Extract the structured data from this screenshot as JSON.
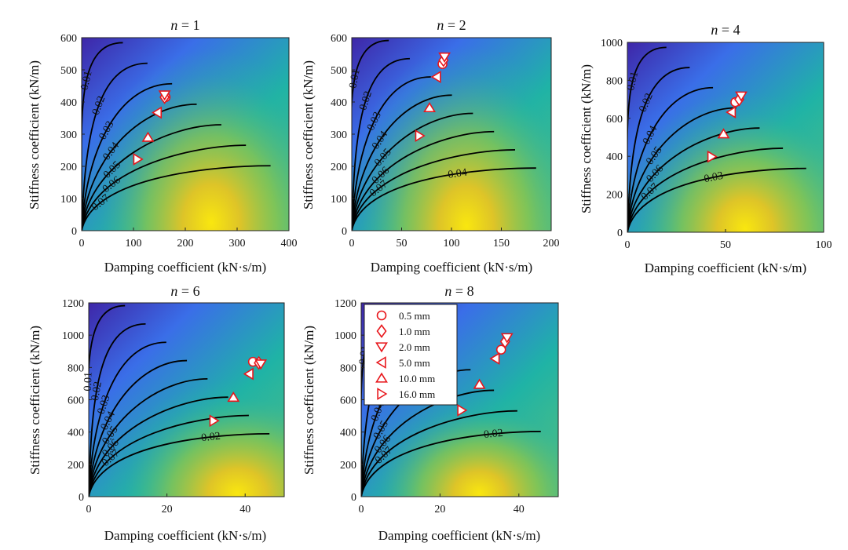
{
  "figure": {
    "colors": {
      "low": "#3e26a8",
      "mid": "#1fb3a6",
      "high": "#f9e70f",
      "marker": "#e8161b",
      "contour": "#000000"
    },
    "legend_title_icon": "marker-legend"
  },
  "chart_data": [
    {
      "type": "contour",
      "title_var": "n",
      "title_eq": " = 1",
      "xlabel": "Damping coefficient (kN·s/m)",
      "ylabel": "Stiffness coefficient (kN/m)",
      "xlim": [
        0,
        400
      ],
      "ylim": [
        0,
        600
      ],
      "xticks": [
        0,
        100,
        200,
        300,
        400
      ],
      "yticks": [
        0,
        100,
        200,
        300,
        400,
        500,
        600
      ],
      "contour_labels": [
        "0.01",
        "0.02",
        "0.03",
        "0.04",
        "0.05",
        "0.06",
        "0.07"
      ],
      "peak": {
        "x": 250,
        "y": 25
      },
      "spread": {
        "x": 250,
        "y": 540
      },
      "points": [
        {
          "amplitude": "0.5 mm",
          "x": 162,
          "y": 415
        },
        {
          "amplitude": "1.0 mm",
          "x": 160,
          "y": 415
        },
        {
          "amplitude": "2.0 mm",
          "x": 160,
          "y": 422
        },
        {
          "amplitude": "5.0 mm",
          "x": 146,
          "y": 367
        },
        {
          "amplitude": "10.0 mm",
          "x": 128,
          "y": 290
        },
        {
          "amplitude": "16.0 mm",
          "x": 108,
          "y": 222
        }
      ]
    },
    {
      "type": "contour",
      "title_var": "n",
      "title_eq": " = 2",
      "xlabel": "Damping coefficient (kN·s/m)",
      "ylabel": "Stiffness coefficient (kN/m)",
      "xlim": [
        0,
        200
      ],
      "ylim": [
        0,
        600
      ],
      "xticks": [
        0,
        50,
        100,
        150,
        200
      ],
      "yticks": [
        0,
        100,
        200,
        300,
        400,
        500,
        600
      ],
      "contour_labels": [
        "0.01",
        "0.02",
        "0.03",
        "0.04",
        "0.05",
        "0.06",
        "0.07",
        "0.04"
      ],
      "peak": {
        "x": 115,
        "y": 15
      },
      "spread": {
        "x": 125,
        "y": 560
      },
      "points": [
        {
          "amplitude": "0.5 mm",
          "x": 91,
          "y": 518
        },
        {
          "amplitude": "1.0 mm",
          "x": 92,
          "y": 530
        },
        {
          "amplitude": "2.0 mm",
          "x": 93,
          "y": 540
        },
        {
          "amplitude": "5.0 mm",
          "x": 85,
          "y": 478
        },
        {
          "amplitude": "10.0 mm",
          "x": 78,
          "y": 382
        },
        {
          "amplitude": "16.0 mm",
          "x": 68,
          "y": 295
        }
      ]
    },
    {
      "type": "contour",
      "title_var": "n",
      "title_eq": " = 4",
      "xlabel": "Damping coefficient (kN·s/m)",
      "ylabel": "Stiffness coefficient (kN/m)",
      "xlim": [
        0,
        100
      ],
      "ylim": [
        0,
        1000
      ],
      "xticks": [
        0,
        50,
        100
      ],
      "yticks": [
        0,
        200,
        400,
        600,
        800,
        1000
      ],
      "contour_labels": [
        "0.01",
        "0.02",
        "0.04",
        "0.05",
        "0.06",
        "0.07",
        "0.03"
      ],
      "peak": {
        "x": 60,
        "y": 20
      },
      "spread": {
        "x": 65,
        "y": 720
      },
      "points": [
        {
          "amplitude": "0.5 mm",
          "x": 55,
          "y": 685
        },
        {
          "amplitude": "1.0 mm",
          "x": 57,
          "y": 700
        },
        {
          "amplitude": "2.0 mm",
          "x": 58,
          "y": 718
        },
        {
          "amplitude": "5.0 mm",
          "x": 53,
          "y": 632
        },
        {
          "amplitude": "10.0 mm",
          "x": 49,
          "y": 518
        },
        {
          "amplitude": "16.0 mm",
          "x": 43,
          "y": 398
        }
      ]
    },
    {
      "type": "contour",
      "title_var": "n",
      "title_eq": " = 6",
      "xlabel": "Damping coefficient (kN·s/m)",
      "ylabel": "Stiffness coefficient (kN/m)",
      "xlim": [
        0,
        50
      ],
      "ylim": [
        0,
        1200
      ],
      "xticks": [
        0,
        20,
        40
      ],
      "yticks": [
        0,
        200,
        400,
        600,
        800,
        1000,
        1200
      ],
      "contour_labels": [
        "0.01",
        "0.02",
        "0.03",
        "0.04",
        "0.05",
        "0.06",
        "0.07",
        "0.02"
      ],
      "peak": {
        "x": 38,
        "y": 20
      },
      "spread": {
        "x": 34,
        "y": 700
      },
      "points": [
        {
          "amplitude": "0.5 mm",
          "x": 42,
          "y": 835
        },
        {
          "amplitude": "1.0 mm",
          "x": 43.5,
          "y": 828
        },
        {
          "amplitude": "2.0 mm",
          "x": 44,
          "y": 822
        },
        {
          "amplitude": "5.0 mm",
          "x": 41,
          "y": 760
        },
        {
          "amplitude": "10.0 mm",
          "x": 37,
          "y": 615
        },
        {
          "amplitude": "16.0 mm",
          "x": 32,
          "y": 470
        }
      ]
    },
    {
      "type": "contour",
      "title_var": "n",
      "title_eq": " = 8",
      "xlabel": "Damping coefficient (kN·s/m)",
      "ylabel": "Stiffness coefficient (kN/m)",
      "xlim": [
        0,
        50
      ],
      "ylim": [
        0,
        1200
      ],
      "xticks": [
        0,
        20,
        40
      ],
      "yticks": [
        0,
        200,
        400,
        600,
        800,
        1000,
        1200
      ],
      "contour_labels": [
        "0.01",
        "0.03",
        "0.04",
        "0.05",
        "0.06",
        "0.07",
        "0.02"
      ],
      "peak": {
        "x": 30,
        "y": 20
      },
      "spread": {
        "x": 30,
        "y": 620
      },
      "legend": [
        "0.5 mm",
        "1.0 mm",
        "2.0 mm",
        "5.0 mm",
        "10.0 mm",
        "16.0 mm"
      ],
      "points": [
        {
          "amplitude": "0.5 mm",
          "x": 35.5,
          "y": 910
        },
        {
          "amplitude": "1.0 mm",
          "x": 36.5,
          "y": 960
        },
        {
          "amplitude": "2.0 mm",
          "x": 37,
          "y": 985
        },
        {
          "amplitude": "5.0 mm",
          "x": 34,
          "y": 855
        },
        {
          "amplitude": "10.0 mm",
          "x": 30,
          "y": 695
        },
        {
          "amplitude": "16.0 mm",
          "x": 25.5,
          "y": 535
        }
      ]
    }
  ]
}
